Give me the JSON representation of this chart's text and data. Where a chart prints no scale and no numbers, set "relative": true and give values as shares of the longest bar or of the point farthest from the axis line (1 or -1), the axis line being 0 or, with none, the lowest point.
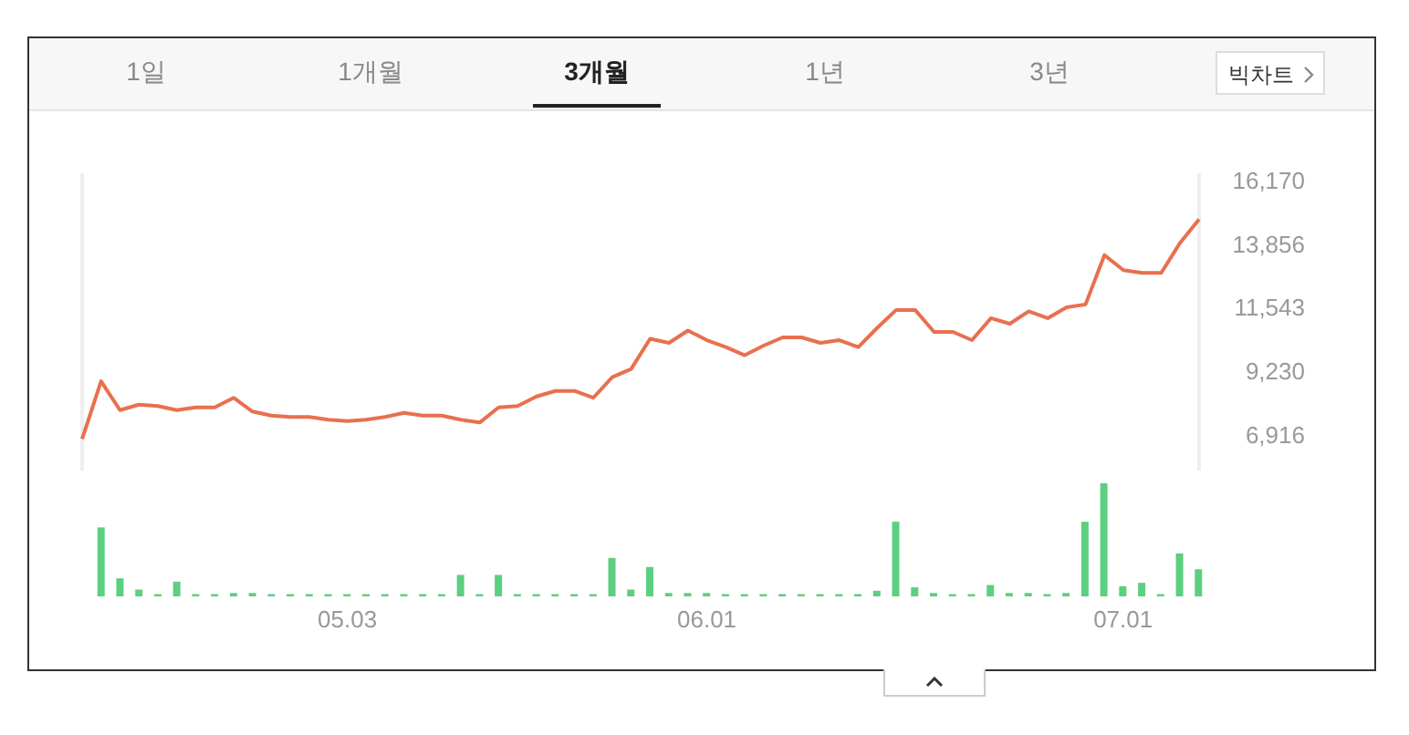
{
  "chart_data": [
    {
      "type": "line",
      "annotations": [
        "1일",
        "1개월",
        "3개월",
        "1년",
        "3년",
        "빅차트"
      ],
      "categories": [
        null,
        null,
        null,
        null,
        null,
        null,
        null,
        null,
        null,
        null,
        null,
        null,
        null,
        null,
        "05.03",
        null,
        null,
        null,
        null,
        null,
        null,
        null,
        null,
        null,
        null,
        null,
        null,
        null,
        null,
        null,
        null,
        null,
        null,
        "06.01",
        null,
        null,
        null,
        null,
        null,
        null,
        null,
        null,
        null,
        null,
        null,
        null,
        null,
        null,
        null,
        null,
        null,
        null,
        null,
        null,
        null,
        "07.01",
        null,
        null,
        null,
        null
      ],
      "values": [
        6750,
        8850,
        7800,
        8000,
        7950,
        7800,
        7900,
        7900,
        8250,
        7750,
        7600,
        7550,
        7550,
        7450,
        7400,
        7450,
        7550,
        7700,
        7600,
        7600,
        7450,
        7350,
        7900,
        7950,
        8300,
        8500,
        8500,
        8250,
        9000,
        9300,
        10400,
        10250,
        10700,
        10350,
        10100,
        9800,
        10150,
        10450,
        10450,
        10250,
        10350,
        10100,
        10800,
        11450,
        11450,
        10650,
        10650,
        10350,
        11150,
        10950,
        11400,
        11150,
        11550,
        11650,
        13450,
        12900,
        12800,
        12800,
        13900,
        14750
      ],
      "color": "#e8704f",
      "ylim": [
        5600,
        16430
      ],
      "yticks": [
        {
          "value": 6916,
          "label": "6,916"
        },
        {
          "value": 9230,
          "label": "9,230"
        },
        {
          "value": 11543,
          "label": "11,543"
        },
        {
          "value": 13856,
          "label": "13,856"
        },
        {
          "value": 16170,
          "label": "16,170"
        }
      ],
      "grid": "x",
      "tick_labels": "y"
    },
    {
      "type": "bar",
      "relative": true,
      "tick_labels": "x",
      "categories": [
        null,
        null,
        null,
        null,
        null,
        null,
        null,
        null,
        null,
        null,
        null,
        null,
        null,
        null,
        "05.03",
        null,
        null,
        null,
        null,
        null,
        null,
        null,
        null,
        null,
        null,
        null,
        null,
        null,
        null,
        null,
        null,
        null,
        null,
        "06.01",
        null,
        null,
        null,
        null,
        null,
        null,
        null,
        null,
        null,
        null,
        null,
        null,
        null,
        null,
        null,
        null,
        null,
        null,
        null,
        null,
        null,
        "07.01",
        null,
        null,
        null,
        null
      ],
      "values": [
        0,
        0.61,
        0.16,
        0.06,
        0.02,
        0.13,
        0.02,
        0.02,
        0.03,
        0.03,
        0.02,
        0.02,
        0.02,
        0.02,
        0.02,
        0.02,
        0.02,
        0.02,
        0.02,
        0.02,
        0.19,
        0.02,
        0.19,
        0.02,
        0.02,
        0.02,
        0.02,
        0.02,
        0.34,
        0.06,
        0.26,
        0.03,
        0.03,
        0.03,
        0.02,
        0.02,
        0.02,
        0.02,
        0.02,
        0.02,
        0.02,
        0.02,
        0.05,
        0.66,
        0.08,
        0.03,
        0.02,
        0.02,
        0.1,
        0.03,
        0.03,
        0.02,
        0.03,
        0.66,
        1,
        0.09,
        0.12,
        0.02,
        0.38,
        0.24
      ],
      "color": "#5ccf80"
    }
  ]
}
